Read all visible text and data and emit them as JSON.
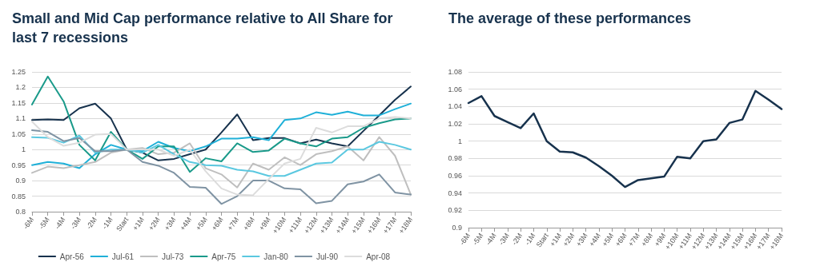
{
  "chart_data": [
    {
      "type": "line",
      "title": "Small and Mid Cap performance relative to All Share for last 7 recessions",
      "categories": [
        "-6M",
        "-5M",
        "-4M",
        "-3M",
        "-2M",
        "-1M",
        "Start",
        "+1M",
        "+2M",
        "+3M",
        "+4M",
        "+5M",
        "+6M",
        "+7M",
        "+8M",
        "+9M",
        "+10M",
        "+11M",
        "+12M",
        "+13M",
        "+14M",
        "+15M",
        "+16M",
        "+17M",
        "+18M"
      ],
      "series": [
        {
          "name": "Apr-56",
          "color": "#17324d",
          "values": [
            1.095,
            1.097,
            1.095,
            1.133,
            1.148,
            1.1,
            1.0,
            0.99,
            0.965,
            0.97,
            0.985,
            1.0,
            1.055,
            1.113,
            1.03,
            1.037,
            1.037,
            1.02,
            1.032,
            1.02,
            1.01,
            1.06,
            1.11,
            1.16,
            1.203
          ]
        },
        {
          "name": "Jul-61",
          "color": "#1fb0d8",
          "values": [
            0.95,
            0.96,
            0.955,
            0.94,
            0.985,
            1.015,
            1.0,
            0.995,
            1.025,
            1.005,
            0.995,
            1.01,
            1.035,
            1.035,
            1.04,
            1.03,
            1.095,
            1.1,
            1.12,
            1.112,
            1.122,
            1.11,
            1.11,
            1.13,
            1.148
          ]
        },
        {
          "name": "Jul-73",
          "color": "#bfbfbf",
          "values": [
            0.925,
            0.945,
            0.94,
            0.95,
            0.96,
            0.99,
            1.0,
            1.005,
            0.985,
            0.99,
            1.02,
            0.94,
            0.92,
            0.878,
            0.955,
            0.935,
            0.975,
            0.95,
            0.985,
            0.995,
            1.01,
            0.965,
            1.04,
            0.98,
            0.855
          ]
        },
        {
          "name": "Apr-75",
          "color": "#1a9a8a",
          "values": [
            1.145,
            1.235,
            1.155,
            1.015,
            0.965,
            1.057,
            1.0,
            0.97,
            1.01,
            1.01,
            0.928,
            0.972,
            0.962,
            1.02,
            0.992,
            0.997,
            1.035,
            1.02,
            1.01,
            1.035,
            1.04,
            1.07,
            1.085,
            1.097,
            1.1
          ]
        },
        {
          "name": "Jan-80",
          "color": "#5bc8e0",
          "values": [
            1.04,
            1.038,
            1.022,
            1.045,
            0.99,
            1.0,
            1.0,
            0.99,
            1.015,
            0.985,
            0.96,
            0.95,
            0.948,
            0.935,
            0.93,
            0.915,
            0.915,
            0.935,
            0.955,
            0.958,
            1.0,
            1.0,
            1.025,
            1.015,
            1.0
          ]
        },
        {
          "name": "Jul-90",
          "color": "#7f93a3",
          "values": [
            1.062,
            1.057,
            1.027,
            1.037,
            0.995,
            0.995,
            1.0,
            0.96,
            0.948,
            0.925,
            0.88,
            0.877,
            0.825,
            0.85,
            0.9,
            0.9,
            0.875,
            0.872,
            0.827,
            0.835,
            0.888,
            0.897,
            0.92,
            0.862,
            0.855
          ]
        },
        {
          "name": "Apr-08",
          "color": "#dcdcdc",
          "values": [
            1.09,
            1.04,
            1.012,
            1.022,
            1.048,
            1.05,
            1.0,
            1.0,
            1.0,
            0.98,
            1.0,
            0.93,
            0.875,
            0.855,
            0.853,
            0.905,
            0.955,
            0.97,
            1.07,
            1.055,
            1.075,
            1.075,
            1.1,
            1.105,
            1.1
          ]
        }
      ],
      "ylim": [
        0.8,
        1.25
      ],
      "yticks": [
        0.8,
        0.85,
        0.9,
        0.95,
        1,
        1.05,
        1.1,
        1.15,
        1.2,
        1.25
      ],
      "grid": "y",
      "legend": "bottom",
      "marker": "none",
      "line_style": "solid"
    },
    {
      "type": "line",
      "title": "The average of these performances",
      "categories": [
        "-6M",
        "-5M",
        "-4M",
        "-3M",
        "-2M",
        "-1M",
        "Start",
        "+1M",
        "+2M",
        "+3M",
        "+4M",
        "+5M",
        "+6M",
        "+7M",
        "+8M",
        "+9M",
        "+10M",
        "+11M",
        "+12M",
        "+13M",
        "+14M",
        "+15M",
        "+16M",
        "+17M",
        "+18M"
      ],
      "series": [
        {
          "color": "#17324d",
          "values": [
            1.044,
            1.052,
            1.029,
            1.022,
            1.015,
            1.032,
            1.0,
            0.988,
            0.987,
            0.981,
            0.971,
            0.96,
            0.947,
            0.955,
            0.957,
            0.959,
            0.982,
            0.98,
            1.0,
            1.002,
            1.021,
            1.025,
            1.058,
            1.048,
            1.037
          ]
        }
      ],
      "ylim": [
        0.9,
        1.08
      ],
      "yticks": [
        0.9,
        0.92,
        0.94,
        0.96,
        0.98,
        1,
        1.02,
        1.04,
        1.06,
        1.08
      ],
      "grid": "y",
      "legend": false,
      "marker": "none",
      "line_style": "solid"
    }
  ]
}
